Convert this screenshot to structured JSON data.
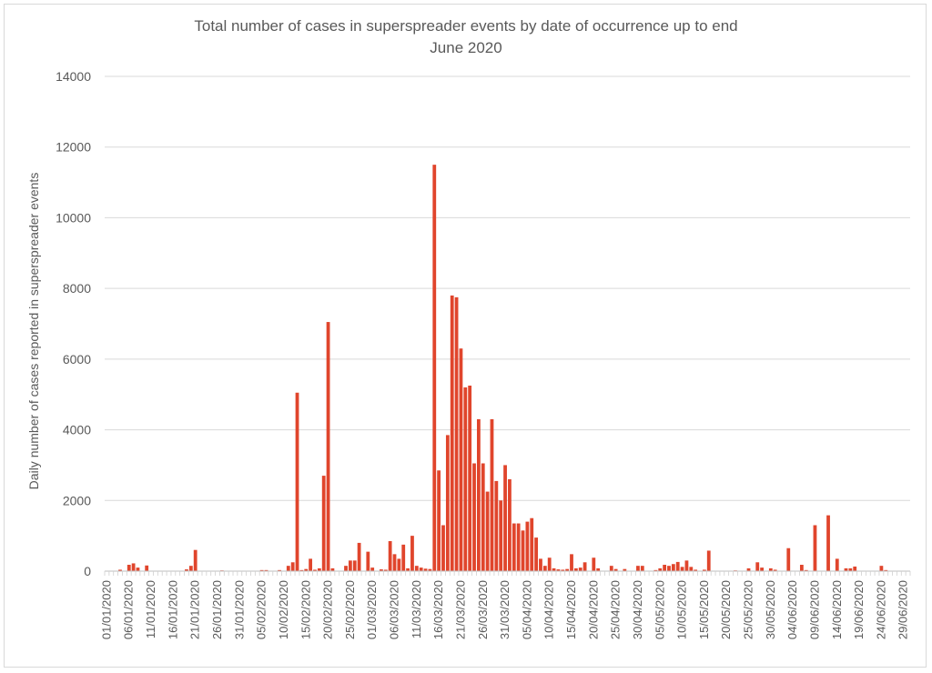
{
  "chart_data": {
    "type": "bar",
    "title": [
      "Total number of cases in superspreader events by date of occurrence up to end",
      "June 2020"
    ],
    "xlabel": "",
    "ylabel": "Daily number of cases reported in superspreader events",
    "ylim": [
      0,
      14000
    ],
    "yticks": [
      0,
      2000,
      4000,
      6000,
      8000,
      10000,
      12000,
      14000
    ],
    "grid": true,
    "bar_color": "#e0452c",
    "start_date": "2020-01-01",
    "end_date": "2020-06-30",
    "xtick_labels": [
      "01/01/2020",
      "06/01/2020",
      "11/01/2020",
      "16/01/2020",
      "21/01/2020",
      "26/01/2020",
      "31/01/2020",
      "05/02/2020",
      "10/02/2020",
      "15/02/2020",
      "20/02/2020",
      "25/02/2020",
      "01/03/2020",
      "06/03/2020",
      "11/03/2020",
      "16/03/2020",
      "21/03/2020",
      "26/03/2020",
      "31/03/2020",
      "05/04/2020",
      "10/04/2020",
      "15/04/2020",
      "20/04/2020",
      "25/04/2020",
      "30/04/2020",
      "05/05/2020",
      "10/05/2020",
      "15/05/2020",
      "20/05/2020",
      "25/05/2020",
      "30/05/2020",
      "04/06/2020",
      "09/06/2020",
      "14/06/2020",
      "19/06/2020",
      "24/06/2020",
      "29/06/2020"
    ],
    "points": [
      [
        "04/01/2020",
        40
      ],
      [
        "06/01/2020",
        180
      ],
      [
        "07/01/2020",
        220
      ],
      [
        "08/01/2020",
        100
      ],
      [
        "10/01/2020",
        160
      ],
      [
        "19/01/2020",
        50
      ],
      [
        "20/01/2020",
        150
      ],
      [
        "21/01/2020",
        600
      ],
      [
        "27/01/2020",
        20
      ],
      [
        "05/02/2020",
        30
      ],
      [
        "06/02/2020",
        30
      ],
      [
        "09/02/2020",
        30
      ],
      [
        "11/02/2020",
        150
      ],
      [
        "12/02/2020",
        250
      ],
      [
        "13/02/2020",
        5050
      ],
      [
        "14/02/2020",
        30
      ],
      [
        "15/02/2020",
        60
      ],
      [
        "16/02/2020",
        350
      ],
      [
        "17/02/2020",
        40
      ],
      [
        "18/02/2020",
        80
      ],
      [
        "19/02/2020",
        2700
      ],
      [
        "20/02/2020",
        7050
      ],
      [
        "21/02/2020",
        80
      ],
      [
        "24/02/2020",
        150
      ],
      [
        "25/02/2020",
        300
      ],
      [
        "26/02/2020",
        300
      ],
      [
        "27/02/2020",
        800
      ],
      [
        "29/02/2020",
        550
      ],
      [
        "01/03/2020",
        100
      ],
      [
        "03/03/2020",
        50
      ],
      [
        "04/03/2020",
        40
      ],
      [
        "05/03/2020",
        850
      ],
      [
        "06/03/2020",
        480
      ],
      [
        "07/03/2020",
        350
      ],
      [
        "08/03/2020",
        750
      ],
      [
        "09/03/2020",
        80
      ],
      [
        "10/03/2020",
        1000
      ],
      [
        "11/03/2020",
        150
      ],
      [
        "12/03/2020",
        100
      ],
      [
        "13/03/2020",
        70
      ],
      [
        "14/03/2020",
        60
      ],
      [
        "15/03/2020",
        11500
      ],
      [
        "16/03/2020",
        2850
      ],
      [
        "17/03/2020",
        1300
      ],
      [
        "18/03/2020",
        3850
      ],
      [
        "19/03/2020",
        7800
      ],
      [
        "20/03/2020",
        7750
      ],
      [
        "21/03/2020",
        6300
      ],
      [
        "22/03/2020",
        5200
      ],
      [
        "23/03/2020",
        5250
      ],
      [
        "24/03/2020",
        3050
      ],
      [
        "25/03/2020",
        4300
      ],
      [
        "26/03/2020",
        3050
      ],
      [
        "27/03/2020",
        2250
      ],
      [
        "28/03/2020",
        4300
      ],
      [
        "29/03/2020",
        2550
      ],
      [
        "30/03/2020",
        2000
      ],
      [
        "31/03/2020",
        3000
      ],
      [
        "01/04/2020",
        2600
      ],
      [
        "02/04/2020",
        1350
      ],
      [
        "03/04/2020",
        1350
      ],
      [
        "04/04/2020",
        1150
      ],
      [
        "05/04/2020",
        1400
      ],
      [
        "06/04/2020",
        1500
      ],
      [
        "07/04/2020",
        950
      ],
      [
        "08/04/2020",
        350
      ],
      [
        "09/04/2020",
        150
      ],
      [
        "10/04/2020",
        380
      ],
      [
        "11/04/2020",
        80
      ],
      [
        "12/04/2020",
        50
      ],
      [
        "13/04/2020",
        40
      ],
      [
        "14/04/2020",
        60
      ],
      [
        "15/04/2020",
        480
      ],
      [
        "16/04/2020",
        80
      ],
      [
        "17/04/2020",
        100
      ],
      [
        "18/04/2020",
        250
      ],
      [
        "20/04/2020",
        380
      ],
      [
        "21/04/2020",
        80
      ],
      [
        "24/04/2020",
        150
      ],
      [
        "25/04/2020",
        60
      ],
      [
        "27/04/2020",
        60
      ],
      [
        "30/04/2020",
        150
      ],
      [
        "01/05/2020",
        150
      ],
      [
        "04/05/2020",
        30
      ],
      [
        "05/05/2020",
        80
      ],
      [
        "06/05/2020",
        180
      ],
      [
        "07/05/2020",
        150
      ],
      [
        "08/05/2020",
        200
      ],
      [
        "09/05/2020",
        260
      ],
      [
        "10/05/2020",
        120
      ],
      [
        "11/05/2020",
        300
      ],
      [
        "12/05/2020",
        120
      ],
      [
        "13/05/2020",
        40
      ],
      [
        "15/05/2020",
        40
      ],
      [
        "16/05/2020",
        580
      ],
      [
        "22/05/2020",
        20
      ],
      [
        "25/05/2020",
        80
      ],
      [
        "27/05/2020",
        250
      ],
      [
        "28/05/2020",
        100
      ],
      [
        "30/05/2020",
        80
      ],
      [
        "31/05/2020",
        40
      ],
      [
        "03/06/2020",
        650
      ],
      [
        "06/06/2020",
        180
      ],
      [
        "07/06/2020",
        30
      ],
      [
        "09/06/2020",
        1300
      ],
      [
        "12/06/2020",
        1580
      ],
      [
        "14/06/2020",
        350
      ],
      [
        "16/06/2020",
        80
      ],
      [
        "17/06/2020",
        80
      ],
      [
        "18/06/2020",
        130
      ],
      [
        "24/06/2020",
        150
      ],
      [
        "25/06/2020",
        30
      ]
    ]
  }
}
